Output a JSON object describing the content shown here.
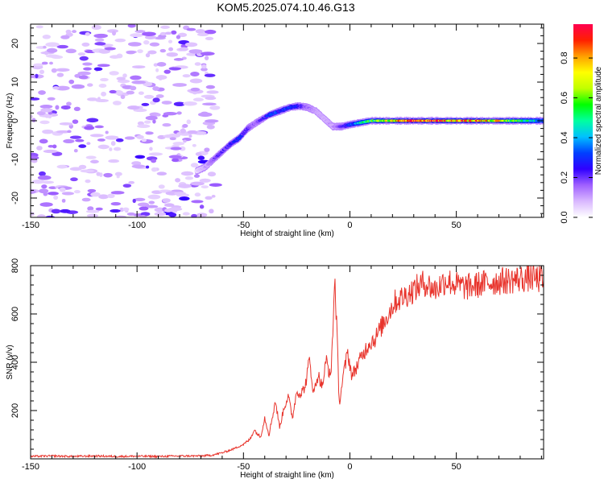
{
  "title": "KOM5.2025.074.10.46.G13",
  "chart_data": [
    {
      "type": "heatmap",
      "title": "KOM5.2025.074.10.46.G13",
      "xlabel": "Height of straight line (km)",
      "ylabel": "Frequency (Hz)",
      "xlim": [
        -150,
        91
      ],
      "ylim": [
        -25,
        25
      ],
      "xticks": [
        -150,
        -100,
        -50,
        0,
        50
      ],
      "yticks": [
        -20,
        -10,
        0,
        10,
        20
      ],
      "colorbar": {
        "label": "Normalized spectral amplitude",
        "range": [
          0,
          0.97
        ],
        "ticks": [
          "0.0",
          "0.2",
          "0.4",
          "0.6",
          "0.8"
        ],
        "tick_values": [
          0.0,
          0.2,
          0.4,
          0.6,
          0.8
        ],
        "colormap": [
          "#ffffff",
          "#d9b8ff",
          "#a060ff",
          "#3000ff",
          "#0040ff",
          "#00c0ff",
          "#00ffa0",
          "#00ff00",
          "#c0ff00",
          "#ffff00",
          "#ffa000",
          "#ff2000",
          "#ff0050"
        ]
      },
      "ridge": {
        "x": [
          -72,
          -68,
          -62,
          -56,
          -52,
          -48,
          -44,
          -38,
          -33,
          -28,
          -24,
          -20,
          -16,
          -12,
          -8,
          -4,
          0,
          5,
          10,
          20,
          30,
          40,
          50,
          60,
          70,
          80,
          91
        ],
        "freq": [
          -13,
          -12,
          -9,
          -6,
          -4.5,
          -2,
          -0.5,
          1.5,
          2.5,
          3.5,
          3.8,
          3.5,
          2.5,
          0.5,
          -1.5,
          -1.5,
          -1,
          -0.5,
          0,
          0,
          0,
          0,
          0,
          0,
          0,
          0,
          0
        ],
        "amplitude": [
          0.05,
          0.1,
          0.2,
          0.25,
          0.3,
          0.2,
          0.15,
          0.3,
          0.3,
          0.3,
          0.25,
          0.15,
          0.12,
          0.1,
          0.12,
          0.2,
          0.3,
          0.45,
          0.55,
          0.7,
          0.85,
          0.9,
          0.8,
          0.85,
          0.7,
          0.55,
          0.4
        ]
      },
      "noise_region_x": [
        -150,
        -63
      ]
    },
    {
      "type": "line",
      "xlabel": "Height of straight line (km)",
      "ylabel": "SNR (v/v)",
      "xlim": [
        -150,
        91
      ],
      "ylim": [
        0,
        800
      ],
      "xticks": [
        -150,
        -100,
        -50,
        0,
        50
      ],
      "yticks": [
        200,
        400,
        600,
        800
      ],
      "series": [
        {
          "color": "#e8342c",
          "x": [
            -150,
            -140,
            -130,
            -120,
            -110,
            -100,
            -90,
            -80,
            -70,
            -65,
            -60,
            -55,
            -50,
            -47,
            -45,
            -42,
            -40,
            -38,
            -35,
            -33,
            -31,
            -29,
            -27,
            -25,
            -23,
            -21,
            -19,
            -17,
            -15,
            -13,
            -11,
            -9,
            -7,
            -5,
            -3,
            -1,
            1,
            3,
            6,
            9,
            12,
            15,
            18,
            21,
            25,
            30,
            35,
            40,
            45,
            50,
            55,
            60,
            65,
            70,
            75,
            80,
            85,
            91
          ],
          "y": [
            10,
            12,
            10,
            12,
            10,
            11,
            10,
            12,
            12,
            15,
            25,
            40,
            60,
            80,
            120,
            90,
            170,
            100,
            240,
            130,
            210,
            260,
            170,
            280,
            270,
            300,
            410,
            270,
            350,
            300,
            410,
            330,
            750,
            230,
            350,
            440,
            340,
            380,
            430,
            480,
            500,
            550,
            600,
            650,
            670,
            700,
            730,
            700,
            740,
            720,
            710,
            720,
            730,
            735,
            740,
            745,
            750,
            740
          ]
        }
      ]
    }
  ]
}
